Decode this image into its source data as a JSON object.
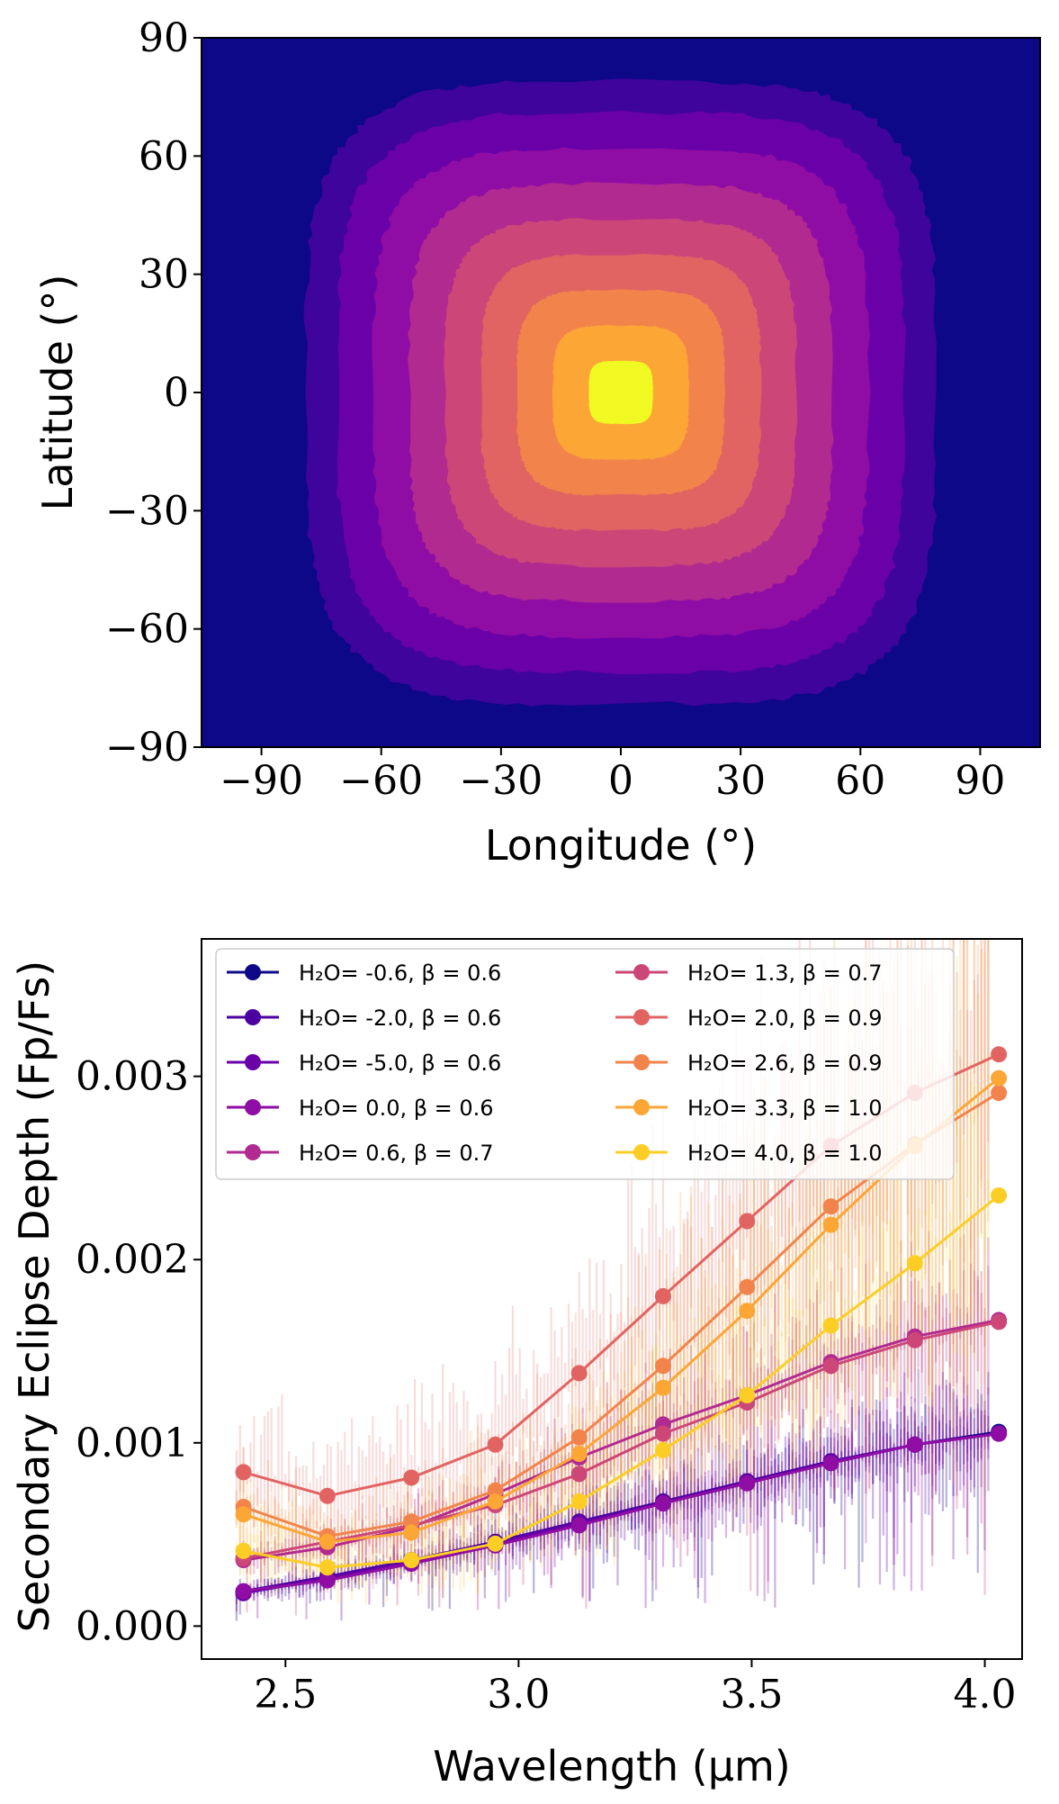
{
  "chart_data": [
    {
      "type": "heatmap",
      "xlabel": "Longitude (°)",
      "ylabel": "Latitude (°)",
      "xlim": [
        -105,
        105
      ],
      "ylim": [
        -90,
        90
      ],
      "xticks": [
        -90,
        -60,
        -30,
        0,
        30,
        60,
        90
      ],
      "yticks": [
        -90,
        -60,
        -30,
        0,
        30,
        60,
        90
      ],
      "xtick_labels": [
        "−90",
        "−60",
        "−30",
        "0",
        "30",
        "60",
        "90"
      ],
      "ytick_labels": [
        "−90",
        "−60",
        "−30",
        "0",
        "30",
        "60",
        "90"
      ],
      "background_color": "#0d0887",
      "contour_levels": [
        {
          "half_width_deg": 79,
          "color": "#3e049c"
        },
        {
          "half_width_deg": 71,
          "color": "#6a00a8"
        },
        {
          "half_width_deg": 62,
          "color": "#8f0da4"
        },
        {
          "half_width_deg": 53,
          "color": "#b12a90"
        },
        {
          "half_width_deg": 44,
          "color": "#cc4778"
        },
        {
          "half_width_deg": 35,
          "color": "#e16462"
        },
        {
          "half_width_deg": 26,
          "color": "#f2844b"
        },
        {
          "half_width_deg": 17,
          "color": "#fca636"
        },
        {
          "half_width_deg": 8,
          "color": "#f0f921"
        }
      ],
      "center_color": "#f0f921",
      "grid": false
    },
    {
      "type": "line",
      "xlabel": "Wavelength (μm)",
      "ylabel": "Secondary Eclipse Depth (Fp/Fs)",
      "xlim": [
        2.32,
        4.08
      ],
      "ylim": [
        -0.00018,
        0.00375
      ],
      "xticks": [
        2.5,
        3.0,
        3.5,
        4.0
      ],
      "xtick_labels": [
        "2.5",
        "3.0",
        "3.5",
        "4.0"
      ],
      "yticks": [
        0.0,
        0.001,
        0.002,
        0.003
      ],
      "ytick_labels": [
        "0.000",
        "0.001",
        "0.002",
        "0.003"
      ],
      "legend_position": "top",
      "legend_columns": 2,
      "grid": false,
      "x": [
        2.41,
        2.59,
        2.77,
        2.95,
        3.13,
        3.31,
        3.49,
        3.67,
        3.85,
        4.03
      ],
      "series": [
        {
          "name": "H₂O= -0.6, β = 0.6",
          "color": "#0d0887",
          "values": [
            0.00018,
            0.00026,
            0.00035,
            0.00045,
            0.00056,
            0.00067,
            0.00078,
            0.00089,
            0.00099,
            0.00106
          ]
        },
        {
          "name": "H₂O= -2.0, β = 0.6",
          "color": "#4c02a1",
          "values": [
            0.00019,
            0.00027,
            0.00036,
            0.00046,
            0.00057,
            0.00068,
            0.00079,
            0.0009,
            0.00099,
            0.00105
          ]
        },
        {
          "name": "H₂O= -5.0, β = 0.6",
          "color": "#6a00a8",
          "values": [
            0.00018,
            0.00026,
            0.00035,
            0.00045,
            0.00056,
            0.00067,
            0.00078,
            0.00089,
            0.00099,
            0.00105
          ]
        },
        {
          "name": "H₂O= 0.0, β = 0.6",
          "color": "#8f0da4",
          "values": [
            0.00019,
            0.00025,
            0.00034,
            0.00044,
            0.00055,
            0.00067,
            0.00078,
            0.00089,
            0.00099,
            0.00105
          ]
        },
        {
          "name": "H₂O= 0.6, β = 0.7",
          "color": "#b12a90",
          "values": [
            0.00036,
            0.00043,
            0.00054,
            0.00072,
            0.00092,
            0.0011,
            0.00126,
            0.00144,
            0.00158,
            0.00167
          ]
        },
        {
          "name": "H₂O= 1.3, β = 0.7",
          "color": "#cc4778",
          "values": [
            0.00037,
            0.00046,
            0.00055,
            0.00066,
            0.00083,
            0.00105,
            0.00122,
            0.00142,
            0.00156,
            0.00166
          ]
        },
        {
          "name": "H₂O= 2.0, β = 0.9",
          "color": "#e16462",
          "values": [
            0.00084,
            0.00071,
            0.00081,
            0.00099,
            0.00138,
            0.0018,
            0.00221,
            0.00262,
            0.00291,
            0.00312
          ]
        },
        {
          "name": "H₂O= 2.6, β = 0.9",
          "color": "#f2844b",
          "values": [
            0.00065,
            0.00049,
            0.00057,
            0.00074,
            0.00103,
            0.00142,
            0.00185,
            0.00229,
            0.00263,
            0.00291
          ]
        },
        {
          "name": "H₂O= 3.3, β = 1.0",
          "color": "#fca636",
          "values": [
            0.00061,
            0.00046,
            0.00051,
            0.00068,
            0.00094,
            0.0013,
            0.00172,
            0.00219,
            0.00262,
            0.00299
          ]
        },
        {
          "name": "H₂O= 4.0, β = 1.0",
          "color": "#fcce25",
          "values": [
            0.00041,
            0.00032,
            0.00036,
            0.00045,
            0.00068,
            0.00096,
            0.00126,
            0.00164,
            0.00198,
            0.00235
          ]
        }
      ]
    }
  ]
}
